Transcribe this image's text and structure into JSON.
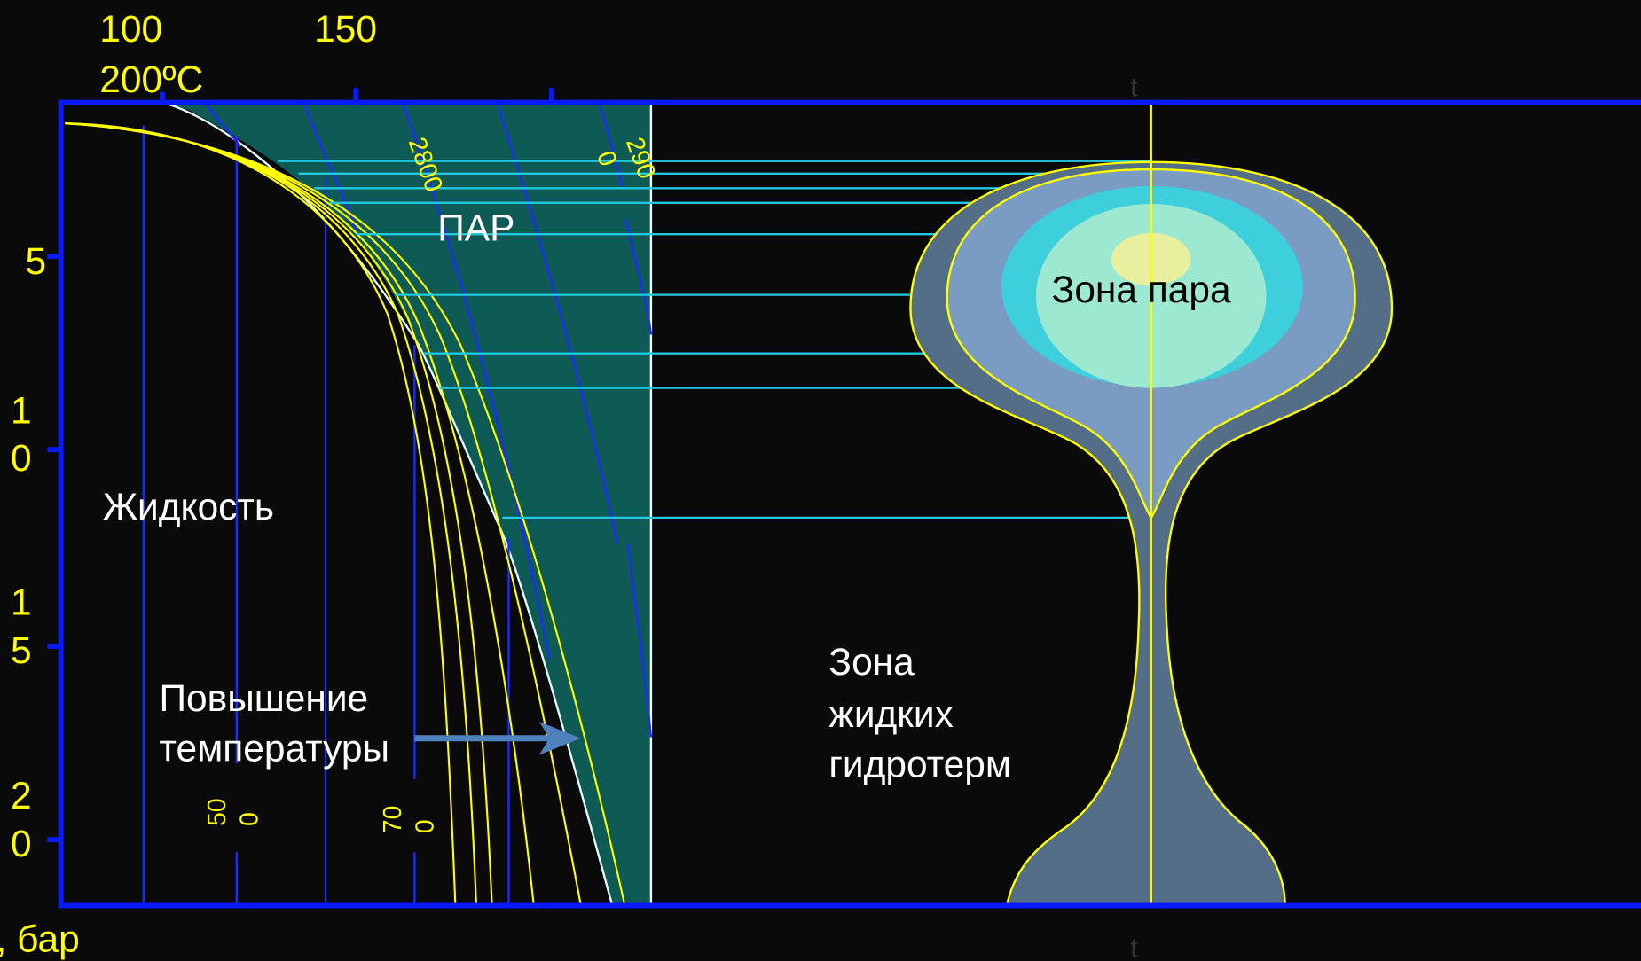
{
  "axis": {
    "top_labels": [
      "100",
      "150",
      "200ºC"
    ],
    "depth_labels": [
      [
        "5"
      ],
      [
        "1",
        "0"
      ],
      [
        "1",
        "5"
      ],
      [
        "2",
        "0"
      ]
    ],
    "unit": ", бар",
    "marker": "t"
  },
  "regions": {
    "vapor": "ПАР",
    "liquid": "Жидкость",
    "arrow_label": [
      "Повышение",
      "температуры"
    ],
    "steam_zone": "Зона пара",
    "liquid_zone": [
      "Зона",
      "жидких",
      "гидротерм"
    ]
  },
  "isolines": [
    [
      "50",
      "0"
    ],
    [
      "70",
      "0"
    ],
    [
      "2800"
    ],
    [
      "290",
      "0"
    ]
  ]
}
